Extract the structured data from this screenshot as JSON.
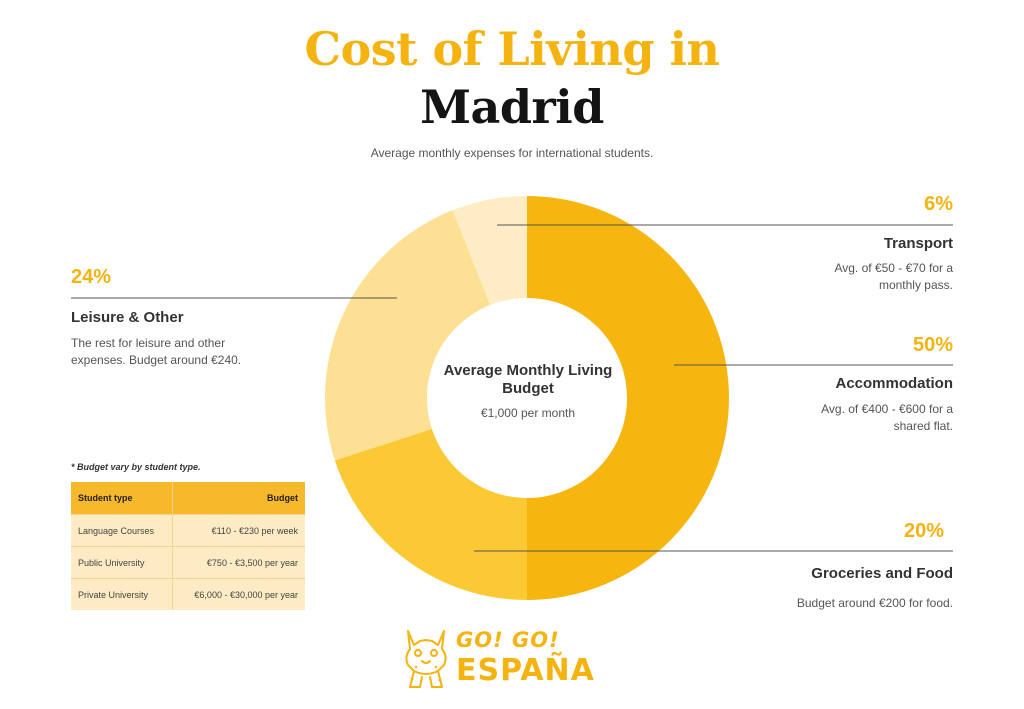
{
  "header": {
    "title_line1": "Cost of Living in",
    "title_line2": "Madrid",
    "subtitle": "Average monthly expenses for international students."
  },
  "colors": {
    "accent": "#f5b30f",
    "accommodation": "#f7b50f",
    "groceries": "#fbc934",
    "leisure": "#fde094",
    "transport": "#feedc4"
  },
  "chart_data": {
    "type": "pie",
    "title": "Cost of Living in Madrid",
    "center_label": "Average Monthly Living Budget",
    "center_value": "€1,000 per month",
    "slices": [
      {
        "label": "Accommodation",
        "value": 50,
        "pct_text": "50%",
        "description": "Avg. of €400 - €600 for a shared flat.",
        "color": "#f7b50f"
      },
      {
        "label": "Groceries and Food",
        "value": 20,
        "pct_text": "20%",
        "description": "Budget around €200 for food.",
        "color": "#fbc934"
      },
      {
        "label": "Leisure & Other",
        "value": 24,
        "pct_text": "24%",
        "description": "The rest for leisure and other expenses. Budget around €240.",
        "color": "#fde094"
      },
      {
        "label": "Transport",
        "value": 6,
        "pct_text": "6%",
        "description": "Avg. of €50 - €70 for a monthly pass.",
        "color": "#feedc4"
      }
    ]
  },
  "budget_table": {
    "note": "* Budget vary by student type.",
    "headers": [
      "Student type",
      "Budget"
    ],
    "rows": [
      [
        "Language Courses",
        "€110 - €230 per week"
      ],
      [
        "Public University",
        "€750 - €3,500 per year"
      ],
      [
        "Private University",
        "€6,000 - €30,000 per year"
      ]
    ]
  },
  "logo": {
    "line1": "GO! GO!",
    "line2": "ESPAÑA",
    "icon": "lynx-mascot-icon"
  }
}
